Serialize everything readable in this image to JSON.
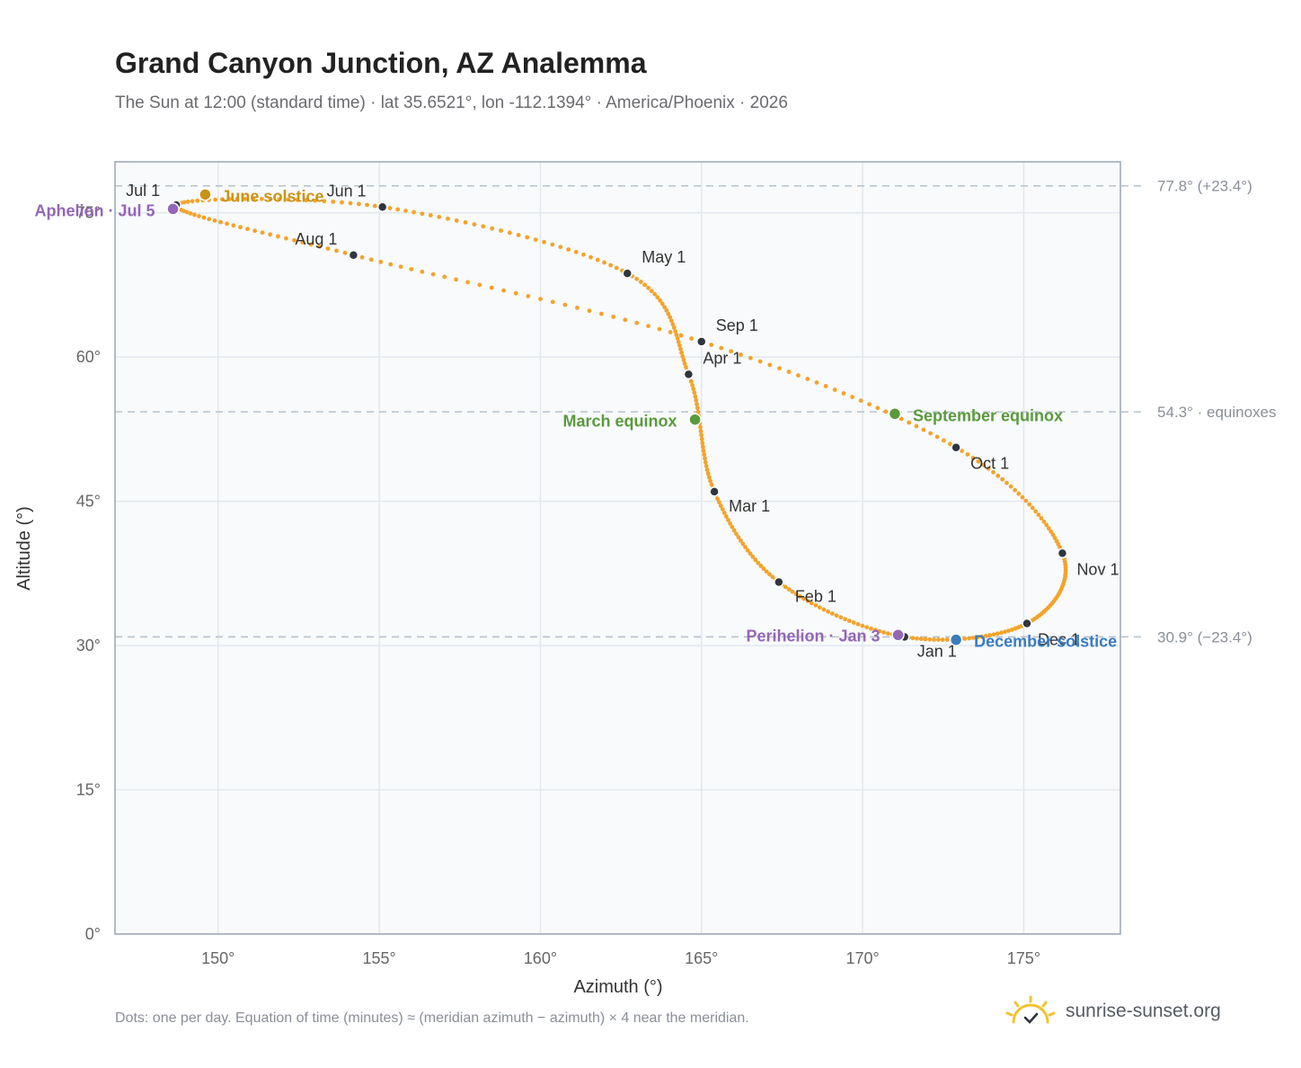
{
  "header": {
    "title": "Grand Canyon Junction, AZ Analemma",
    "subtitle": "The Sun at 12:00 (standard time) · lat 35.6521°, lon -112.1394° · America/Phoenix · 2026"
  },
  "footer": {
    "note": "Dots: one per day. Equation of time (minutes) ≈ (meridian azimuth − azimuth) × 4 near the meridian.",
    "brand": "sunrise-sunset.org"
  },
  "colors": {
    "curve": "#f4a32a",
    "month_marker": "#2f3640",
    "solstice_june": "#c99418",
    "equinox": "#5a9a3a",
    "solstice_december": "#3a7bc0",
    "apsis": "#9466b7",
    "reference_line": "#b7c2cc",
    "plot_background": "#f8fafc",
    "grid": "#e3e8ee",
    "frame": "#9aa5b3"
  },
  "chart_data": {
    "type": "scatter",
    "title": "Grand Canyon Junction, AZ Analemma",
    "xlabel": "Azimuth (°)",
    "ylabel": "Altitude (°)",
    "xlim": [
      146.8,
      178.0
    ],
    "ylim": [
      0,
      80.3
    ],
    "xticks": [
      150,
      155,
      160,
      165,
      170,
      175
    ],
    "yticks": [
      0,
      15,
      30,
      45,
      60,
      75
    ],
    "grid": true,
    "month_markers": [
      {
        "label": "Jan 1",
        "x": 171.3,
        "y": 30.9
      },
      {
        "label": "Feb 1",
        "x": 167.4,
        "y": 36.6
      },
      {
        "label": "Mar 1",
        "x": 165.4,
        "y": 46.0
      },
      {
        "label": "Apr 1",
        "x": 164.6,
        "y": 58.2
      },
      {
        "label": "May 1",
        "x": 162.7,
        "y": 68.7
      },
      {
        "label": "Jun 1",
        "x": 155.1,
        "y": 75.6
      },
      {
        "label": "Jul 1",
        "x": 148.7,
        "y": 75.8
      },
      {
        "label": "Aug 1",
        "x": 154.2,
        "y": 70.6
      },
      {
        "label": "Sep 1",
        "x": 165.0,
        "y": 61.6
      },
      {
        "label": "Oct 1",
        "x": 172.9,
        "y": 50.6
      },
      {
        "label": "Nov 1",
        "x": 176.2,
        "y": 39.6
      },
      {
        "label": "Dec 1",
        "x": 175.1,
        "y": 32.3
      }
    ],
    "events": [
      {
        "label": "June solstice",
        "x": 149.6,
        "y": 76.9
      },
      {
        "label": "March equinox",
        "x": 164.8,
        "y": 53.5
      },
      {
        "label": "September equinox",
        "x": 171.0,
        "y": 54.1
      },
      {
        "label": "December solstice",
        "x": 172.9,
        "y": 30.6
      },
      {
        "label": "Perihelion · Jan 3",
        "x": 171.1,
        "y": 31.1
      },
      {
        "label": "Aphelion · Jul 5",
        "x": 148.6,
        "y": 75.4
      }
    ],
    "reference_lines": [
      {
        "label": "77.8° (+23.4°)",
        "y": 77.8
      },
      {
        "label": "54.3° · equinoxes",
        "y": 54.3
      },
      {
        "label": "30.9° (−23.4°)",
        "y": 30.9
      }
    ]
  }
}
